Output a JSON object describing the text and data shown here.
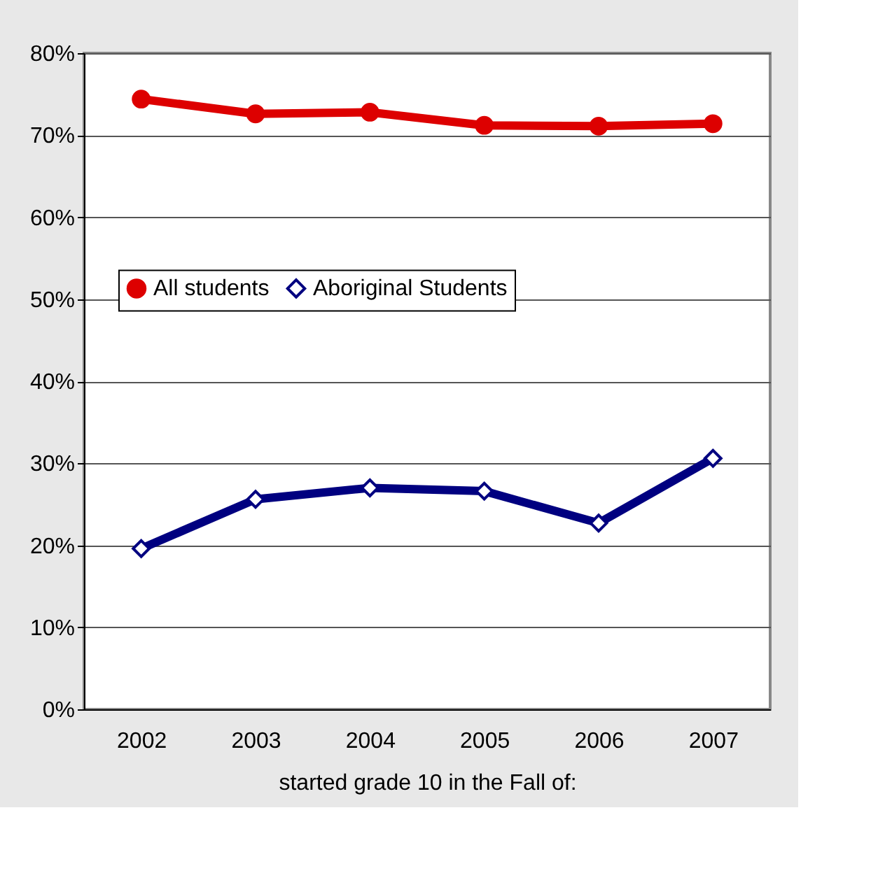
{
  "chart_data": {
    "type": "line",
    "xlabel": "started grade 10 in the Fall of:",
    "categories": [
      "2002",
      "2003",
      "2004",
      "2005",
      "2006",
      "2007"
    ],
    "series": [
      {
        "name": "All students",
        "color": "#dd0000",
        "marker": "circle",
        "values": [
          74.4,
          72.6,
          72.8,
          71.2,
          71.1,
          71.4
        ]
      },
      {
        "name": "Aboriginal Students",
        "color": "#000080",
        "marker": "diamond",
        "values": [
          19.6,
          25.6,
          27.0,
          26.6,
          22.7,
          30.6
        ]
      }
    ],
    "ylim": [
      0,
      80
    ],
    "yticks": [
      {
        "value": 0,
        "label": "0%"
      },
      {
        "value": 10,
        "label": "10%"
      },
      {
        "value": 20,
        "label": "20%"
      },
      {
        "value": 30,
        "label": "30%"
      },
      {
        "value": 40,
        "label": "40%"
      },
      {
        "value": 50,
        "label": "50%"
      },
      {
        "value": 60,
        "label": "60%"
      },
      {
        "value": 70,
        "label": "70%"
      },
      {
        "value": 80,
        "label": "80%"
      }
    ],
    "grid": "y",
    "legend": "top",
    "line_style": "solid"
  }
}
